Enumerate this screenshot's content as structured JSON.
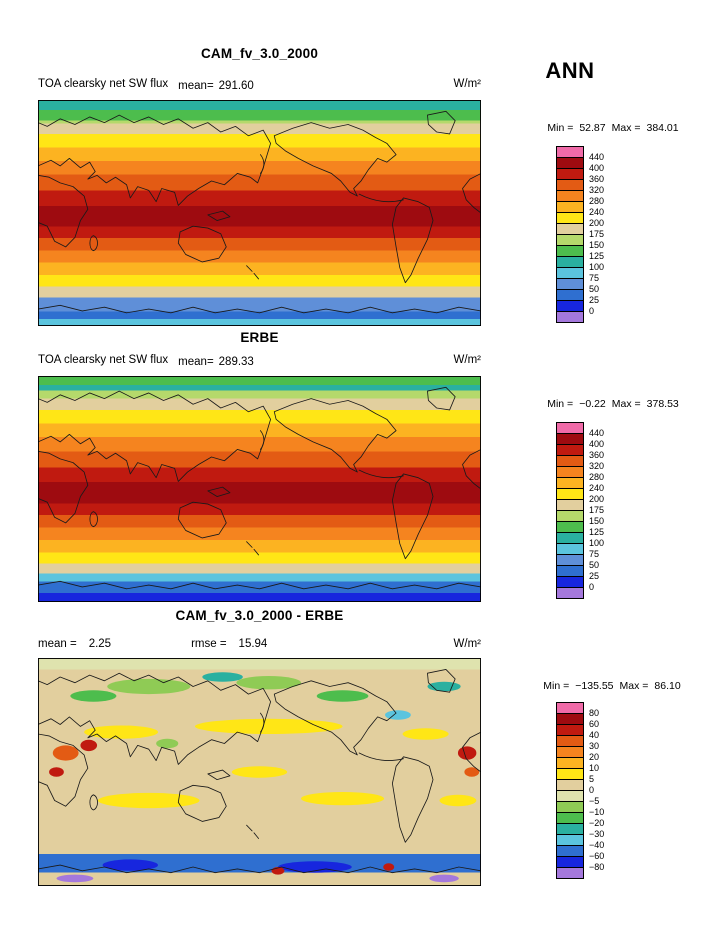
{
  "header": {
    "season": "ANN"
  },
  "panels": {
    "model": {
      "title": "CAM_fv_3.0_2000",
      "subtitle_left": "TOA clearsky net SW flux",
      "mean_label": "mean=",
      "mean_value": "291.60",
      "units": "W/m²",
      "min_label": "Min =",
      "min_value": "52.87",
      "max_label": "Max =",
      "max_value": "384.01"
    },
    "obs": {
      "title": "ERBE",
      "subtitle_left": "TOA clearsky net SW flux",
      "mean_label": "mean=",
      "mean_value": "289.33",
      "units": "W/m²",
      "min_label": "Min =",
      "min_value": "−0.22",
      "max_label": "Max =",
      "max_value": "378.53"
    },
    "diff": {
      "title": "CAM_fv_3.0_2000 - ERBE",
      "mean_label": "mean =",
      "mean_value": "2.25",
      "rmse_label": "rmse =",
      "rmse_value": "15.94",
      "units": "W/m²",
      "min_label": "Min =",
      "min_value": "−135.55",
      "max_label": "Max =",
      "max_value": "86.10"
    }
  },
  "colorbars": {
    "flux": {
      "tick_labels": [
        "440",
        "400",
        "360",
        "320",
        "280",
        "240",
        "200",
        "175",
        "150",
        "125",
        "100",
        "75",
        "50",
        "25",
        "0"
      ],
      "colors": [
        "#f06ba8",
        "#9e0b10",
        "#c01a10",
        "#e35b14",
        "#f5841f",
        "#fcb321",
        "#ffe616",
        "#e2cf9e",
        "#b5d96b",
        "#4dbd4d",
        "#2ab0a0",
        "#5bc4de",
        "#5f8fd8",
        "#2f6fd0",
        "#1726de",
        "#a478dc"
      ]
    },
    "diff": {
      "tick_labels": [
        "80",
        "60",
        "40",
        "30",
        "20",
        "10",
        "5",
        "0",
        "−5",
        "−10",
        "−20",
        "−30",
        "−40",
        "−60",
        "−80"
      ],
      "colors": [
        "#f06ba8",
        "#9e0b10",
        "#c01a10",
        "#e35b14",
        "#f5841f",
        "#fcb321",
        "#ffe616",
        "#e2cf9e",
        "#dfe3ae",
        "#8fcb55",
        "#4dbd4d",
        "#2ab0a0",
        "#5bc4de",
        "#2f6fd0",
        "#1726de",
        "#a478dc"
      ]
    }
  },
  "maps": {
    "model": {
      "bands": [
        {
          "from": 0.0,
          "to": 0.045,
          "color": "#2ab0a0"
        },
        {
          "from": 0.045,
          "to": 0.09,
          "color": "#4dbd4d"
        },
        {
          "from": 0.09,
          "to": 0.105,
          "color": "#b5d96b"
        },
        {
          "from": 0.105,
          "to": 0.15,
          "color": "#e2cf9e"
        },
        {
          "from": 0.15,
          "to": 0.21,
          "color": "#ffe616"
        },
        {
          "from": 0.21,
          "to": 0.27,
          "color": "#fcb321"
        },
        {
          "from": 0.27,
          "to": 0.33,
          "color": "#f5841f"
        },
        {
          "from": 0.33,
          "to": 0.4,
          "color": "#e35b14"
        },
        {
          "from": 0.4,
          "to": 0.47,
          "color": "#c01a10"
        },
        {
          "from": 0.47,
          "to": 0.56,
          "color": "#9e0b10"
        },
        {
          "from": 0.56,
          "to": 0.61,
          "color": "#c01a10"
        },
        {
          "from": 0.61,
          "to": 0.665,
          "color": "#e35b14"
        },
        {
          "from": 0.665,
          "to": 0.72,
          "color": "#f5841f"
        },
        {
          "from": 0.72,
          "to": 0.775,
          "color": "#fcb321"
        },
        {
          "from": 0.775,
          "to": 0.825,
          "color": "#ffe616"
        },
        {
          "from": 0.825,
          "to": 0.875,
          "color": "#e2cf9e"
        },
        {
          "from": 0.875,
          "to": 0.935,
          "color": "#5f8fd8"
        },
        {
          "from": 0.935,
          "to": 0.97,
          "color": "#2f6fd0"
        },
        {
          "from": 0.97,
          "to": 1.0,
          "color": "#5bc4de"
        }
      ]
    },
    "obs": {
      "bands": [
        {
          "from": 0.0,
          "to": 0.04,
          "color": "#4dbd4d"
        },
        {
          "from": 0.04,
          "to": 0.065,
          "color": "#2ab0a0"
        },
        {
          "from": 0.065,
          "to": 0.1,
          "color": "#b5d96b"
        },
        {
          "from": 0.1,
          "to": 0.15,
          "color": "#e2cf9e"
        },
        {
          "from": 0.15,
          "to": 0.21,
          "color": "#ffe616"
        },
        {
          "from": 0.21,
          "to": 0.27,
          "color": "#fcb321"
        },
        {
          "from": 0.27,
          "to": 0.335,
          "color": "#f5841f"
        },
        {
          "from": 0.335,
          "to": 0.405,
          "color": "#e35b14"
        },
        {
          "from": 0.405,
          "to": 0.47,
          "color": "#c01a10"
        },
        {
          "from": 0.47,
          "to": 0.565,
          "color": "#9e0b10"
        },
        {
          "from": 0.565,
          "to": 0.615,
          "color": "#c01a10"
        },
        {
          "from": 0.615,
          "to": 0.67,
          "color": "#e35b14"
        },
        {
          "from": 0.67,
          "to": 0.725,
          "color": "#f5841f"
        },
        {
          "from": 0.725,
          "to": 0.78,
          "color": "#fcb321"
        },
        {
          "from": 0.78,
          "to": 0.83,
          "color": "#ffe616"
        },
        {
          "from": 0.83,
          "to": 0.875,
          "color": "#e2cf9e"
        },
        {
          "from": 0.875,
          "to": 0.91,
          "color": "#5bc4de"
        },
        {
          "from": 0.91,
          "to": 0.96,
          "color": "#2f6fd0"
        },
        {
          "from": 0.96,
          "to": 1.0,
          "color": "#1726de"
        }
      ]
    },
    "diff": {
      "bands": [
        {
          "from": 0.0,
          "to": 0.05,
          "color": "#dfe3ae"
        },
        {
          "from": 0.05,
          "to": 0.86,
          "color": "#e2cf9e"
        },
        {
          "from": 0.86,
          "to": 0.94,
          "color": "#2f6fd0"
        },
        {
          "from": 0.94,
          "to": 1.0,
          "color": "#e2cf9e"
        }
      ]
    }
  },
  "chart_data": [
    {
      "type": "heatmap",
      "title": "CAM_fv_3.0_2000",
      "variable": "TOA clearsky net SW flux",
      "season": "ANN",
      "units": "W/m²",
      "mean": 291.6,
      "min": 52.87,
      "max": 384.01,
      "contour_levels": [
        0,
        25,
        50,
        75,
        100,
        125,
        150,
        175,
        200,
        240,
        280,
        320,
        360,
        400,
        440
      ],
      "projection": "global latitude-longitude map, Pacific-centered",
      "pattern": "zonally banded field: ~360-400 W/m² maximum across the tropics, decreasing poleward through 320/280/240/200 bands to ~50-150 near the poles; lowest values over Antarctica"
    },
    {
      "type": "heatmap",
      "title": "ERBE",
      "variable": "TOA clearsky net SW flux",
      "season": "ANN",
      "units": "W/m²",
      "mean": 289.33,
      "min": -0.22,
      "max": 378.53,
      "contour_levels": [
        0,
        25,
        50,
        75,
        100,
        125,
        150,
        175,
        200,
        240,
        280,
        320,
        360,
        400,
        440
      ],
      "projection": "global latitude-longitude map, Pacific-centered",
      "pattern": "same zonally banded structure as model; tropical maximum ~360-380 W/m², values near 0-50 W/m² over Antarctica"
    },
    {
      "type": "heatmap",
      "title": "CAM_fv_3.0_2000 - ERBE",
      "variable": "TOA clearsky net SW flux difference",
      "season": "ANN",
      "units": "W/m²",
      "mean": 2.25,
      "rmse": 15.94,
      "min": -135.55,
      "max": 86.1,
      "contour_levels": [
        -80,
        -60,
        -40,
        -30,
        -20,
        -10,
        -5,
        0,
        5,
        10,
        20,
        30,
        40,
        60,
        80
      ],
      "projection": "global latitude-longitude map, Pacific-centered",
      "pattern": "mostly small differences (0 to 10, beige/yellow); positive patches (red/orange, up to ~80) over North Africa, Arabia and Asia; scattered negative patches (green/teal) at high northern latitudes; strong negative band (-40 to -80, blue) around Antarctica with isolated positive spots"
    }
  ]
}
